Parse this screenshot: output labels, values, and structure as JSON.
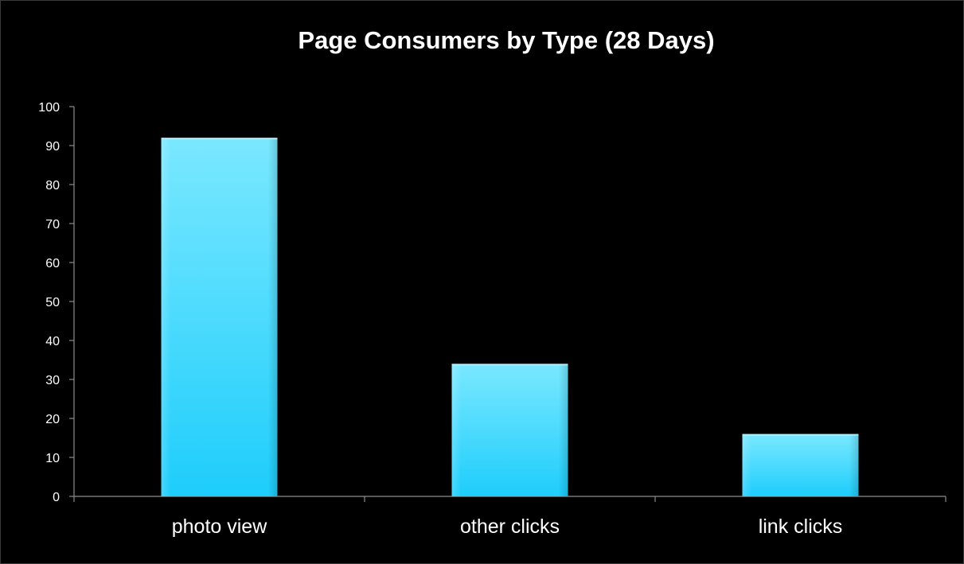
{
  "chart_data": {
    "type": "bar",
    "title": "Page Consumers by Type (28 Days)",
    "categories": [
      "photo view",
      "other clicks",
      "link clicks"
    ],
    "values": [
      92,
      34,
      16
    ],
    "ylim": [
      0,
      100
    ],
    "yticks": [
      0,
      10,
      20,
      30,
      40,
      50,
      60,
      70,
      80,
      90,
      100
    ],
    "xlabel": "",
    "ylabel": "",
    "grid": false,
    "legend": "none",
    "colors": {
      "background": "#000000",
      "bar_top": "#7ae8ff",
      "bar_bottom": "#1ecdfb",
      "axis": "#8c8c8c",
      "text": "#ffffff"
    }
  }
}
